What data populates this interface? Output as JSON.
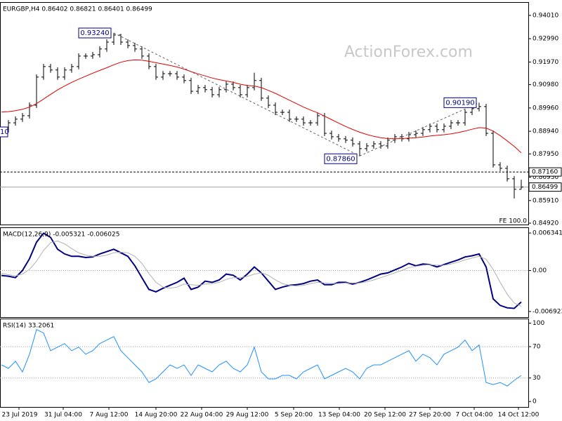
{
  "chart_data": [
    {
      "type": "ohlc",
      "title": "EURGBP,H4 0.86402 0.86821 0.86401 0.86499",
      "watermark": "ActionForex.com",
      "edge_label": "10",
      "note": "FE 100.0",
      "bar_color": "#000000",
      "ohlc": {
        "open": [
          0.889,
          0.8901,
          0.8931,
          0.8947,
          0.8962,
          0.9008,
          0.9131,
          0.9177,
          0.9162,
          0.9131,
          0.9162,
          0.9177,
          0.9223,
          0.9223,
          0.9229,
          0.9254,
          0.9284,
          0.9315,
          0.9284,
          0.9269,
          0.9254,
          0.9223,
          0.9177,
          0.9131,
          0.9146,
          0.9146,
          0.9131,
          0.9116,
          0.9069,
          0.9085,
          0.9076,
          0.9054,
          0.9076,
          0.91,
          0.9085,
          0.9054,
          0.9085,
          0.9116,
          0.9039,
          0.9008,
          0.8977,
          0.8977,
          0.8947,
          0.8947,
          0.8931,
          0.8931,
          0.8962,
          0.8885,
          0.887,
          0.8861,
          0.8855,
          0.8839,
          0.8818,
          0.883,
          0.8839,
          0.883,
          0.8855,
          0.887,
          0.8861,
          0.8879,
          0.8885,
          0.8901,
          0.8916,
          0.8901,
          0.8916,
          0.8931,
          0.8931,
          0.8977,
          0.8993,
          0.9002,
          0.8885,
          0.8747,
          0.8732,
          0.8686,
          0.86402
        ],
        "high": [
          0.8913,
          0.8943,
          0.8959,
          0.8974,
          0.902,
          0.9143,
          0.9189,
          0.9189,
          0.9174,
          0.9174,
          0.9189,
          0.9235,
          0.9235,
          0.9241,
          0.9266,
          0.9296,
          0.9324,
          0.932,
          0.9296,
          0.9281,
          0.9266,
          0.9235,
          0.9189,
          0.9158,
          0.9158,
          0.9158,
          0.9143,
          0.9128,
          0.9097,
          0.9097,
          0.9088,
          0.9088,
          0.9112,
          0.9112,
          0.9097,
          0.9097,
          0.915,
          0.9128,
          0.9051,
          0.902,
          0.8989,
          0.8989,
          0.8959,
          0.8959,
          0.8943,
          0.8974,
          0.8974,
          0.8897,
          0.8882,
          0.8873,
          0.8867,
          0.8851,
          0.8842,
          0.8851,
          0.8851,
          0.8867,
          0.8882,
          0.8882,
          0.8891,
          0.8897,
          0.8913,
          0.8928,
          0.8928,
          0.8928,
          0.8943,
          0.8943,
          0.8989,
          0.9005,
          0.9019,
          0.9014,
          0.8897,
          0.8759,
          0.8744,
          0.8698,
          0.86821
        ],
        "low": [
          0.8878,
          0.8889,
          0.8919,
          0.8935,
          0.895,
          0.8996,
          0.9119,
          0.915,
          0.9119,
          0.9119,
          0.915,
          0.9165,
          0.9211,
          0.9211,
          0.9217,
          0.9242,
          0.9272,
          0.9272,
          0.9257,
          0.9242,
          0.9211,
          0.9165,
          0.9119,
          0.9119,
          0.9134,
          0.9119,
          0.9104,
          0.9057,
          0.9057,
          0.9064,
          0.9042,
          0.9042,
          0.9064,
          0.9073,
          0.9042,
          0.9042,
          0.9073,
          0.9027,
          0.8996,
          0.8965,
          0.8965,
          0.8935,
          0.8935,
          0.8919,
          0.8919,
          0.8919,
          0.8873,
          0.8858,
          0.8849,
          0.8843,
          0.8827,
          0.8786,
          0.8806,
          0.8818,
          0.8818,
          0.8818,
          0.8843,
          0.8849,
          0.8849,
          0.8867,
          0.8873,
          0.8889,
          0.8889,
          0.8889,
          0.8904,
          0.8919,
          0.8919,
          0.8965,
          0.8981,
          0.8873,
          0.8735,
          0.872,
          0.8674,
          0.86,
          0.86401
        ],
        "close": [
          0.8901,
          0.8931,
          0.8947,
          0.8962,
          0.9008,
          0.9131,
          0.9177,
          0.9162,
          0.9131,
          0.9162,
          0.9177,
          0.9223,
          0.9223,
          0.9229,
          0.9254,
          0.9284,
          0.9315,
          0.9284,
          0.9269,
          0.9254,
          0.9223,
          0.9177,
          0.9131,
          0.9146,
          0.9146,
          0.9131,
          0.9116,
          0.9069,
          0.9085,
          0.9076,
          0.9054,
          0.9076,
          0.91,
          0.9085,
          0.9054,
          0.9085,
          0.9116,
          0.9039,
          0.9008,
          0.8977,
          0.8977,
          0.8947,
          0.8947,
          0.8931,
          0.8931,
          0.8962,
          0.8885,
          0.887,
          0.8861,
          0.8855,
          0.8839,
          0.8818,
          0.883,
          0.8839,
          0.883,
          0.8855,
          0.887,
          0.8861,
          0.8879,
          0.8885,
          0.8901,
          0.8916,
          0.8901,
          0.8916,
          0.8931,
          0.8931,
          0.8977,
          0.8993,
          0.9002,
          0.8885,
          0.8747,
          0.8732,
          0.8686,
          0.86402,
          0.86499
        ]
      },
      "series": [
        {
          "color": "#e00000",
          "values": [
            0.8978,
            0.898,
            0.8984,
            0.899,
            0.9,
            0.9015,
            0.9035,
            0.9055,
            0.9075,
            0.9092,
            0.9108,
            0.9122,
            0.9135,
            0.9148,
            0.916,
            0.9172,
            0.9185,
            0.9196,
            0.9203,
            0.9206,
            0.9205,
            0.92,
            0.9194,
            0.9188,
            0.9182,
            0.9175,
            0.9166,
            0.9155,
            0.9145,
            0.9136,
            0.9127,
            0.912,
            0.9114,
            0.9108,
            0.91,
            0.9094,
            0.9092,
            0.9085,
            0.9073,
            0.906,
            0.9045,
            0.903,
            0.9015,
            0.9,
            0.8987,
            0.8975,
            0.896,
            0.8945,
            0.893,
            0.8915,
            0.8902,
            0.889,
            0.888,
            0.8872,
            0.8866,
            0.8862,
            0.8861,
            0.8862,
            0.8864,
            0.8866,
            0.8869,
            0.8873,
            0.8876,
            0.8879,
            0.8883,
            0.8888,
            0.8895,
            0.8903,
            0.891,
            0.8908,
            0.8895,
            0.8875,
            0.8852,
            0.8828,
            0.88
          ]
        }
      ],
      "annotations": [
        {
          "index": 16,
          "value": 0.9324,
          "label": "0.93240"
        },
        {
          "index": 51,
          "value": 0.8786,
          "label": "0.87860"
        },
        {
          "index": 68,
          "value": 0.9019,
          "label": "0.90190"
        }
      ],
      "levels": [
        {
          "value": 0.8716,
          "label": "0.87160",
          "style": "dashed"
        },
        {
          "value": 0.86499,
          "label": "0.86499",
          "style": "solid"
        }
      ],
      "xlim": [
        -0.2,
        75.0
      ],
      "ylim": [
        0.8486,
        0.9456
      ],
      "yticks": [
        {
          "value": 0.9401,
          "label": "0.94010"
        },
        {
          "value": 0.9299,
          "label": "0.92990"
        },
        {
          "value": 0.9197,
          "label": "0.91970"
        },
        {
          "value": 0.9098,
          "label": "0.90980"
        },
        {
          "value": 0.8996,
          "label": "0.89960"
        },
        {
          "value": 0.8894,
          "label": "0.88940"
        },
        {
          "value": 0.8795,
          "label": "0.87950"
        },
        {
          "value": 0.8693,
          "label": "0.86930"
        },
        {
          "value": 0.8591,
          "label": "0.85910"
        },
        {
          "value": 0.8492,
          "label": "0.84920"
        }
      ]
    },
    {
      "type": "macd",
      "title": "MACD(12,26,9) -0.005321 -0.006025",
      "series": [
        {
          "color": "#000080",
          "values": [
            -0.00084,
            -0.00096,
            -0.0012,
            0,
            0.002,
            0.0048,
            0.0063,
            0.0056,
            0.0036,
            0.0028,
            0.0024,
            0.0024,
            0.0022,
            0.0023,
            0.0028,
            0.0032,
            0.0036,
            0.003,
            0.0024,
            0.0008,
            -0.0012,
            -0.0032,
            -0.0036,
            -0.003,
            -0.0025,
            -0.002,
            -0.0013,
            -0.0032,
            -0.0028,
            -0.0018,
            -0.002,
            -0.0016,
            -0.0006,
            -0.0008,
            -0.0016,
            -0.0006,
            0.0006,
            -0.0004,
            -0.0018,
            -0.0032,
            -0.0028,
            -0.0025,
            -0.0024,
            -0.0022,
            -0.0018,
            -0.0016,
            -0.0024,
            -0.0024,
            -0.002,
            -0.002,
            -0.0023,
            -0.002,
            -0.0016,
            -0.0011,
            -0.0006,
            -0.0004,
            0.0001,
            0.0006,
            0.0012,
            0.0008,
            0.0011,
            0.001,
            0.0006,
            0.001,
            0.0014,
            0.0018,
            0.0023,
            0.0025,
            0.0028,
            0.0006,
            -0.0048,
            -0.0059,
            -0.0063,
            -0.0064,
            -0.005321
          ]
        },
        {
          "color": "#b0b0b0",
          "values": [
            -0.0005,
            -0.0007,
            -0.0009,
            -0.0006,
            0.0002,
            0.0016,
            0.0034,
            0.0047,
            0.005,
            0.0045,
            0.0037,
            0.003,
            0.0026,
            0.0024,
            0.0024,
            0.0026,
            0.003,
            0.0031,
            0.003,
            0.0024,
            0.0012,
            -0.0005,
            -0.002,
            -0.0028,
            -0.003,
            -0.0028,
            -0.0023,
            -0.0024,
            -0.0025,
            -0.0023,
            -0.0022,
            -0.002,
            -0.0015,
            -0.0012,
            -0.0012,
            -0.001,
            -0.0006,
            -0.0004,
            -0.0008,
            -0.0016,
            -0.0022,
            -0.0025,
            -0.0026,
            -0.0025,
            -0.0022,
            -0.002,
            -0.0021,
            -0.0022,
            -0.0022,
            -0.0021,
            -0.0021,
            -0.0021,
            -0.0019,
            -0.0016,
            -0.0012,
            -0.0008,
            -0.0004,
            0,
            0.0005,
            0.0007,
            0.0009,
            0.001,
            0.0009,
            0.0009,
            0.0011,
            0.0014,
            0.0018,
            0.0021,
            0.0024,
            0.0019,
            0.0002,
            -0.002,
            -0.004,
            -0.0055,
            -0.006025
          ]
        }
      ],
      "levels": [
        0
      ],
      "xlim": [
        -0.2,
        75.0
      ],
      "ylim": [
        -0.00788,
        0.00718
      ],
      "yticks": [
        0.006341,
        {
          "value": 0,
          "label": "0.00"
        },
        -0.006923
      ]
    },
    {
      "type": "line",
      "title": "RSI(14) 33.2061",
      "series": [
        {
          "color": "#1e90ff",
          "values": [
            46.8,
            42.3,
            51.4,
            37.8,
            60.4,
            91.9,
            87.4,
            64.9,
            69.4,
            73.9,
            64.9,
            69.4,
            60.4,
            64.9,
            73.9,
            78.4,
            82.9,
            64.9,
            55.9,
            46.8,
            37.8,
            24.3,
            28.8,
            37.8,
            46.8,
            42.3,
            46.8,
            33.3,
            46.8,
            42.3,
            37.8,
            46.8,
            51.4,
            42.3,
            37.8,
            46.8,
            69.4,
            37.8,
            28.8,
            28.8,
            33.3,
            33.3,
            28.8,
            37.8,
            42.3,
            46.8,
            28.8,
            33.3,
            37.8,
            42.3,
            37.8,
            28.8,
            42.3,
            46.8,
            46.8,
            51.4,
            55.9,
            60.4,
            64.9,
            51.4,
            60.4,
            55.9,
            46.8,
            60.4,
            64.9,
            69.4,
            78.4,
            64.9,
            72.1,
            24.3,
            21.6,
            24.3,
            19.8,
            27.0,
            33.2061
          ]
        }
      ],
      "levels": [
        70,
        30
      ],
      "xlim": [
        -0.2,
        75.0
      ],
      "ylim": [
        -7,
        105
      ],
      "yticks": [
        100,
        70,
        30,
        0
      ],
      "xticks": [
        {
          "value": 2.5,
          "label": "23 Jul 2019"
        },
        {
          "value": 8.8,
          "label": "31 Jul 04:00"
        },
        {
          "value": 15.3,
          "label": "7 Aug 12:00"
        },
        {
          "value": 22.0,
          "label": "14 Aug 20:00"
        },
        {
          "value": 28.5,
          "label": "22 Aug 04:00"
        },
        {
          "value": 35.0,
          "label": "29 Aug 12:00"
        },
        {
          "value": 41.6,
          "label": "5 Sep 20:00"
        },
        {
          "value": 48.1,
          "label": "13 Sep 04:00"
        },
        {
          "value": 54.6,
          "label": "20 Sep 12:00"
        },
        {
          "value": 61.0,
          "label": "27 Sep 20:00"
        },
        {
          "value": 67.3,
          "label": "7 Oct 04:00"
        },
        {
          "value": 73.6,
          "label": "14 Oct 12:00"
        }
      ]
    }
  ]
}
